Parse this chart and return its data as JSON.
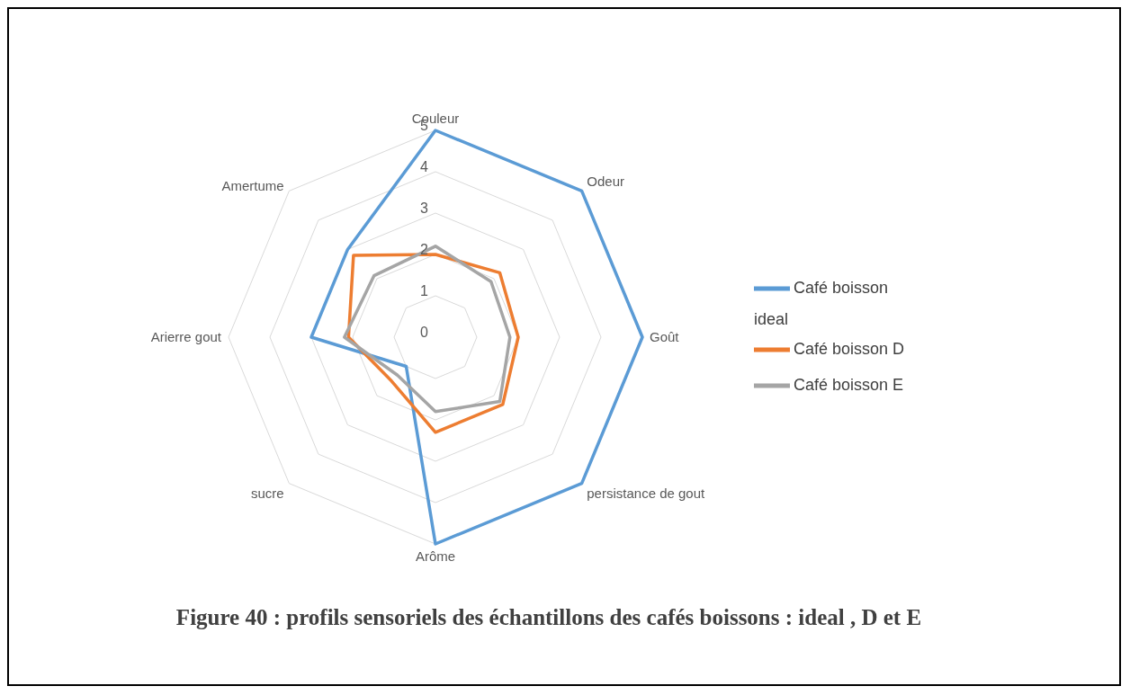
{
  "chart_data": {
    "type": "radar",
    "title": "Figure 40 : profils sensoriels des échantillons des cafés boissons : ideal , D et E",
    "categories": [
      "Couleur",
      "Odeur",
      "Goût",
      "persistance de gout",
      "Arôme",
      "sucre",
      "Arierre gout",
      "Amertume"
    ],
    "series": [
      {
        "name": "Café boisson ideal",
        "color": "#5b9bd5",
        "values": [
          5,
          5,
          5,
          5,
          5,
          1,
          3,
          3
        ]
      },
      {
        "name": "Café boisson D",
        "color": "#ed7d31",
        "values": [
          2,
          2.2,
          2,
          2.3,
          2.3,
          1.5,
          2.1,
          2.8
        ]
      },
      {
        "name": "Café boisson E",
        "color": "#a5a5a5",
        "values": [
          2.2,
          1.9,
          1.8,
          2.2,
          1.8,
          1.3,
          2.2,
          2.1
        ]
      }
    ],
    "ylim": [
      0,
      5
    ],
    "yticks": [
      0,
      1,
      2,
      3,
      4,
      5
    ],
    "grid": true,
    "legend": "right",
    "marker": "none",
    "line_style": "solid"
  }
}
